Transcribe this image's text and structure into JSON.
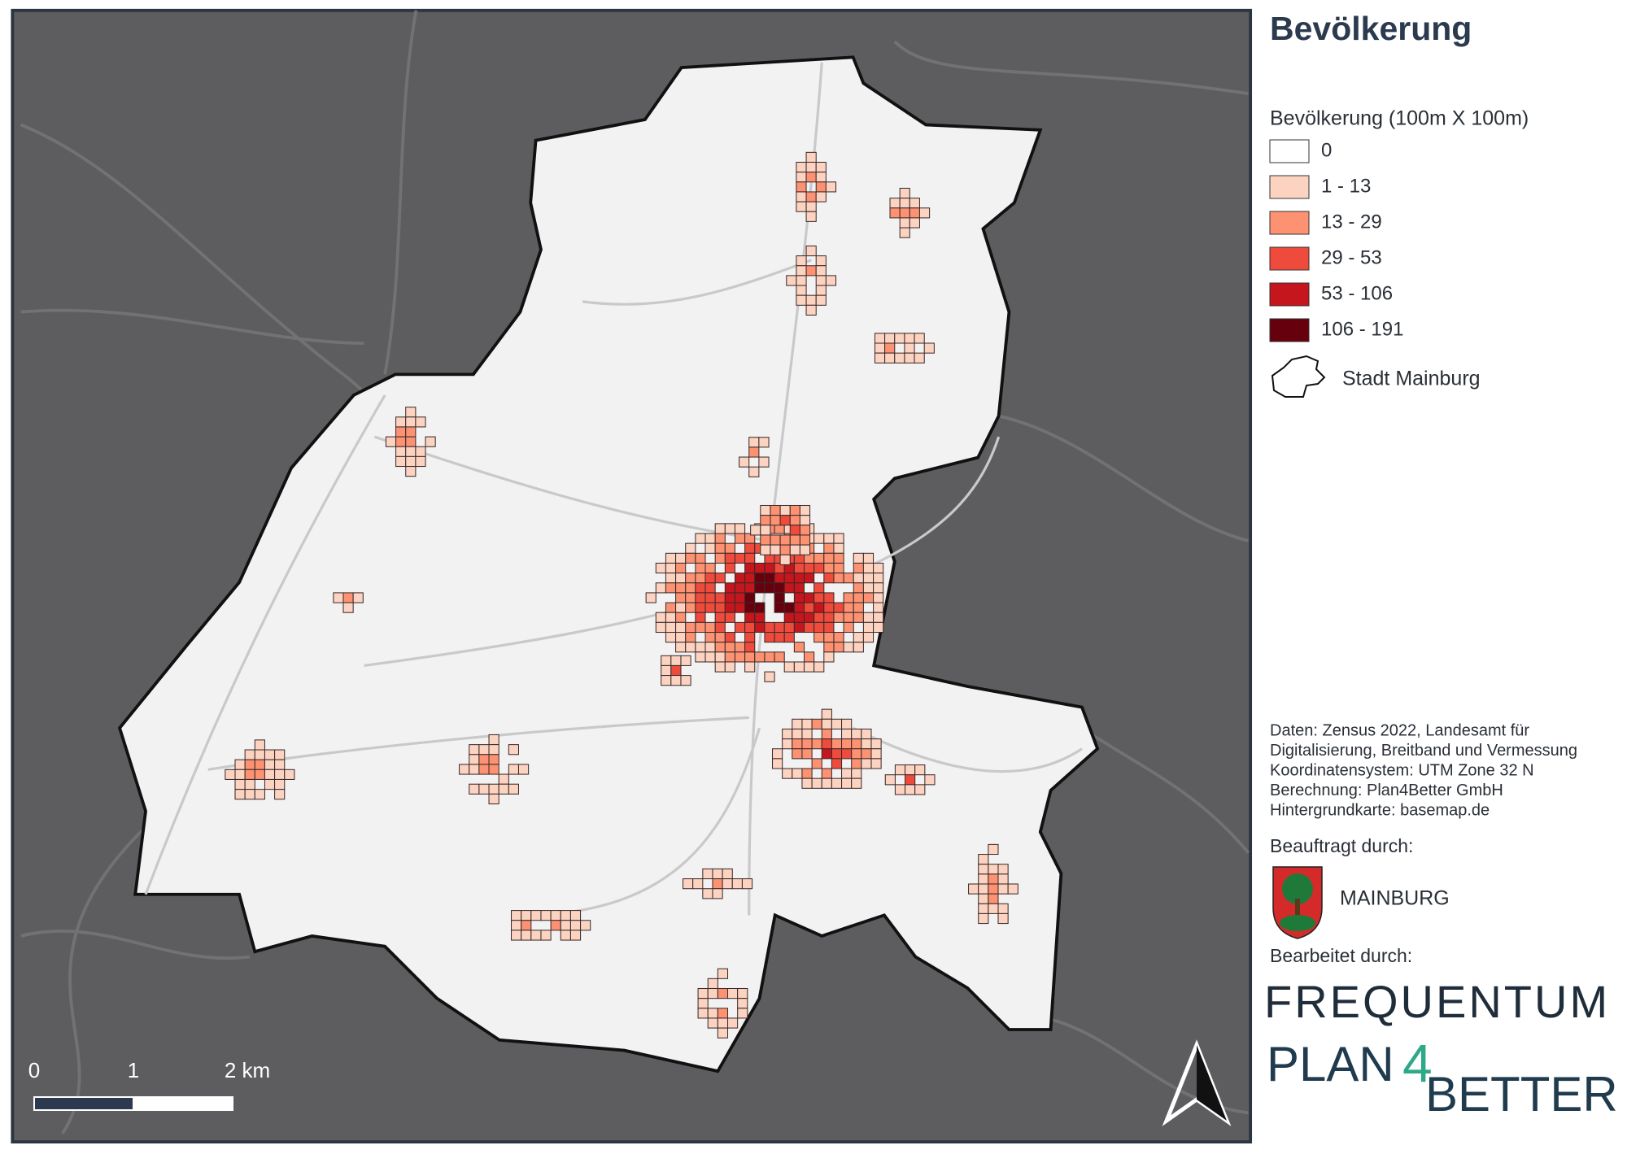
{
  "title": "Bevölkerung",
  "legend": {
    "title": "Bevölkerung (100m X 100m)",
    "items": [
      {
        "label": "0",
        "color": "#ffffff"
      },
      {
        "label": "1 - 13",
        "color": "#fcd3c1"
      },
      {
        "label": "13 - 29",
        "color": "#fc9272"
      },
      {
        "label": "29 - 53",
        "color": "#ef4b3c"
      },
      {
        "label": "53 - 106",
        "color": "#c4161c"
      },
      {
        "label": "106 - 191",
        "color": "#67000d"
      }
    ],
    "boundary": "Stadt Mainburg"
  },
  "credits": [
    "Daten: Zensus 2022, Landesamt für",
    "Digitalisierung, Breitband und Vermessung",
    "Koordinatensystem: UTM Zone 32 N",
    "Berechnung: Plan4Better GmbH",
    "Hintergrundkarte: basemap.de"
  ],
  "commissioned": {
    "label": "Beauftragt durch:",
    "name": "MAINBURG"
  },
  "edited": {
    "label": "Bearbeitet durch:",
    "frequentum": "FREQUENTUM",
    "plan": "PLAN",
    "four": "4",
    "better": "BETTER"
  },
  "scalebar": [
    "0",
    "1",
    "2 km"
  ]
}
